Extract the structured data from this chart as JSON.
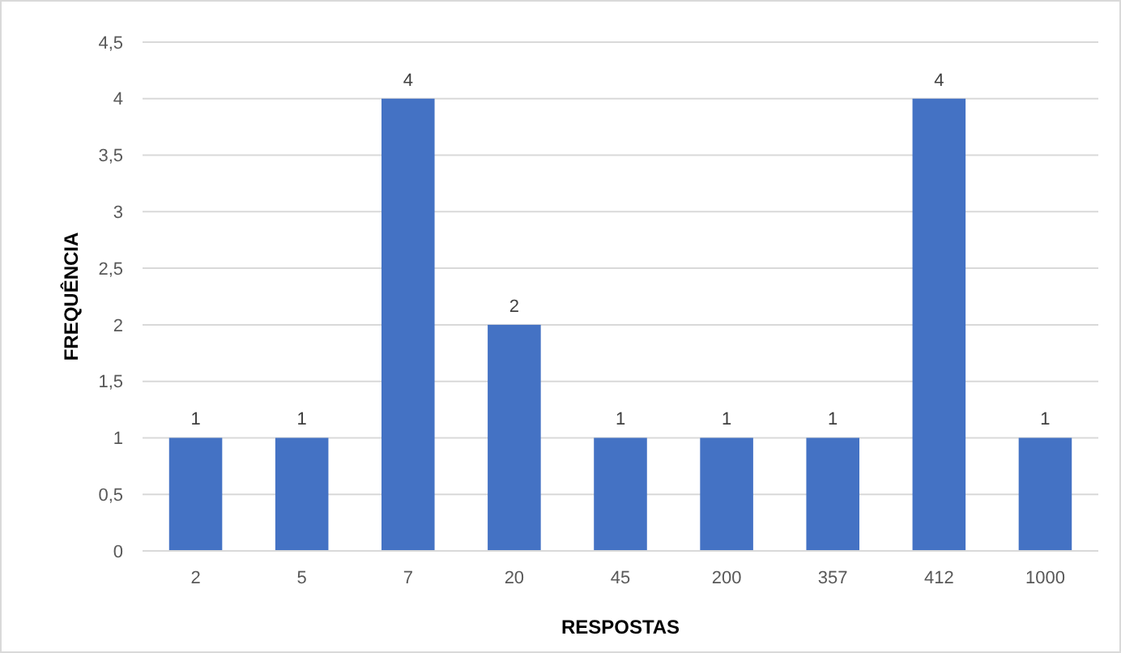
{
  "chart_data": {
    "type": "bar",
    "xlabel": "RESPOSTAS",
    "ylabel": "FREQUÊNCIA",
    "categories": [
      "2",
      "5",
      "7",
      "20",
      "45",
      "200",
      "357",
      "412",
      "1000"
    ],
    "values": [
      1,
      1,
      4,
      2,
      1,
      1,
      1,
      4,
      1
    ],
    "color": "#4472c4",
    "ylim": [
      0,
      4.5
    ],
    "yticks": [
      0,
      {
        "value": 0.5,
        "label": "0,5"
      },
      1,
      {
        "value": 1.5,
        "label": "1,5"
      },
      2,
      {
        "value": 2.5,
        "label": "2,5"
      },
      3,
      {
        "value": 3.5,
        "label": "3,5"
      },
      4,
      {
        "value": 4.5,
        "label": "4,5"
      }
    ],
    "grid": "y",
    "data_labels": true
  }
}
